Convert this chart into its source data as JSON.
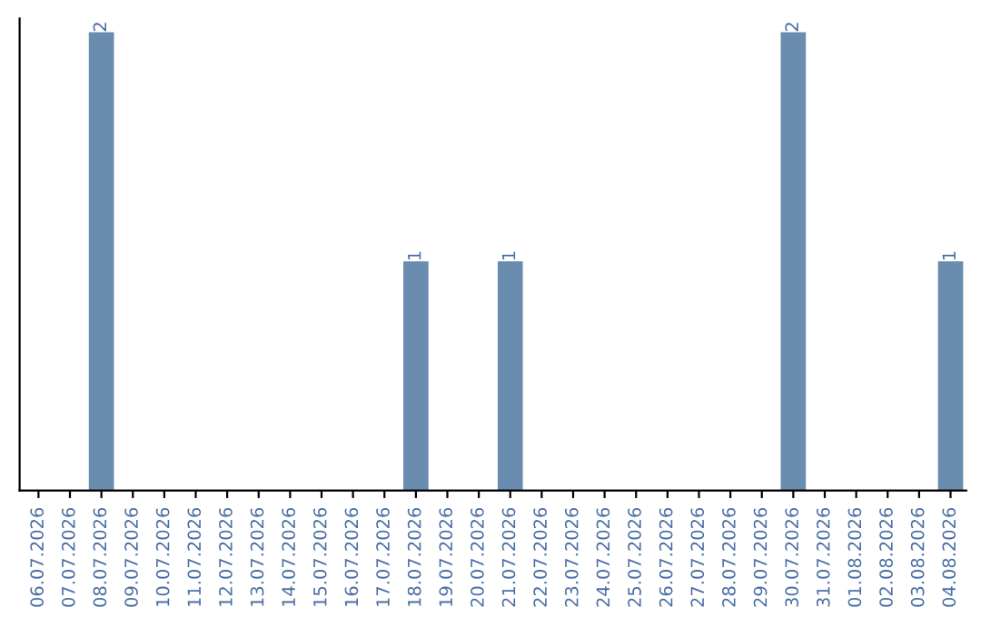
{
  "chart_data": {
    "type": "bar",
    "categories": [
      "06.07.2026",
      "07.07.2026",
      "08.07.2026",
      "09.07.2026",
      "10.07.2026",
      "11.07.2026",
      "12.07.2026",
      "13.07.2026",
      "14.07.2026",
      "15.07.2026",
      "16.07.2026",
      "17.07.2026",
      "18.07.2026",
      "19.07.2026",
      "20.07.2026",
      "21.07.2026",
      "22.07.2026",
      "23.07.2026",
      "24.07.2026",
      "25.07.2026",
      "26.07.2026",
      "27.07.2026",
      "28.07.2026",
      "29.07.2026",
      "30.07.2026",
      "31.07.2026",
      "01.08.2026",
      "02.08.2026",
      "03.08.2026",
      "04.08.2026"
    ],
    "values": [
      0,
      0,
      2,
      0,
      0,
      0,
      0,
      0,
      0,
      0,
      0,
      0,
      1,
      0,
      0,
      1,
      0,
      0,
      0,
      0,
      0,
      0,
      0,
      0,
      2,
      0,
      0,
      0,
      0,
      1
    ],
    "value_labels": [
      null,
      null,
      "2",
      null,
      null,
      null,
      null,
      null,
      null,
      null,
      null,
      null,
      "1",
      null,
      null,
      "1",
      null,
      null,
      null,
      null,
      null,
      null,
      null,
      null,
      "2",
      null,
      null,
      null,
      null,
      "1"
    ],
    "color": "#6a8caf",
    "tick_labels": "x",
    "grid": false,
    "legend": false
  }
}
